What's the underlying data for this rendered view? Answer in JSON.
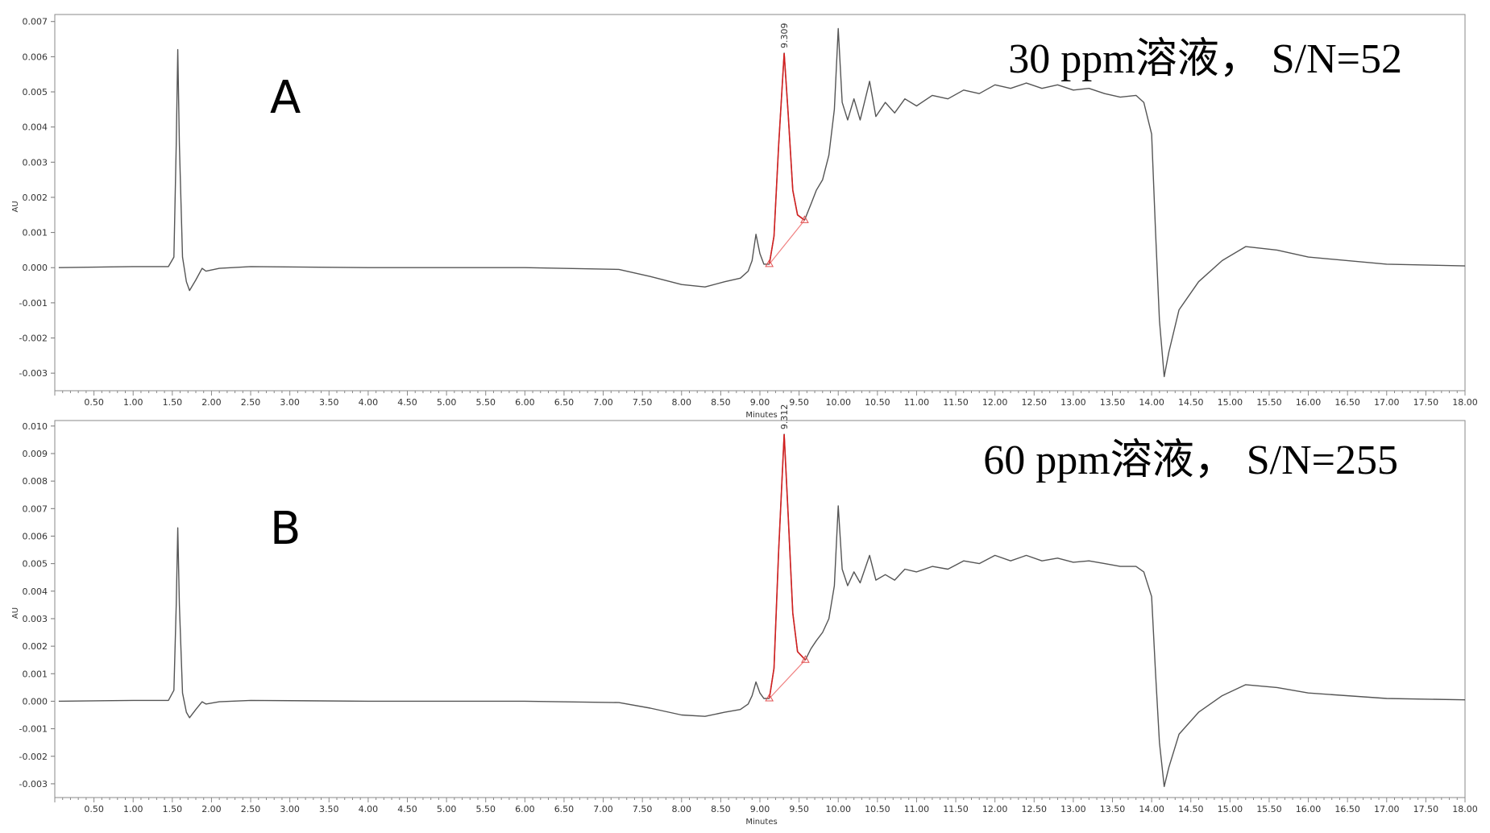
{
  "chart_data": [
    {
      "type": "line",
      "panel_letter": "A",
      "annotation": "30 ppm溶液，  S/N=52",
      "xlabel": "Minutes",
      "ylabel": "AU",
      "xlim": [
        0,
        18
      ],
      "ylim": [
        -0.0035,
        0.0072
      ],
      "x_tick_labels": [
        "0.50",
        "1.00",
        "1.50",
        "2.00",
        "2.50",
        "3.00",
        "3.50",
        "4.00",
        "4.50",
        "5.00",
        "5.50",
        "6.00",
        "6.50",
        "7.00",
        "7.50",
        "8.00",
        "8.50",
        "9.00",
        "9.50",
        "10.00",
        "10.50",
        "11.00",
        "11.50",
        "12.00",
        "12.50",
        "13.00",
        "13.50",
        "14.00",
        "14.50",
        "15.00",
        "15.50",
        "16.00",
        "16.50",
        "17.00",
        "17.50",
        "18.00"
      ],
      "y_tick_labels": [
        "0.007",
        "0.006",
        "0.005",
        "0.004",
        "0.003",
        "0.002",
        "0.001",
        "0.000",
        "-0.001",
        "-0.002",
        "-0.003"
      ],
      "peak_label": "9.309",
      "integrated_peak": {
        "start": [
          9.12,
          0.0001
        ],
        "apex": [
          9.31,
          0.0061
        ],
        "end": [
          9.57,
          0.00135
        ]
      },
      "trace": {
        "color": "#555555",
        "peak_color": "#d22020",
        "points": [
          [
            0.05,
            0.0
          ],
          [
            1.0,
            3e-05
          ],
          [
            1.45,
            3e-05
          ],
          [
            1.52,
            0.0003
          ],
          [
            1.55,
            0.0035
          ],
          [
            1.57,
            0.0062
          ],
          [
            1.59,
            0.0035
          ],
          [
            1.63,
            0.0003
          ],
          [
            1.68,
            -0.0004
          ],
          [
            1.72,
            -0.00065
          ],
          [
            1.8,
            -0.00035
          ],
          [
            1.88,
            -2e-05
          ],
          [
            1.93,
            -0.0001
          ],
          [
            2.1,
            -2e-05
          ],
          [
            2.5,
            3e-05
          ],
          [
            4.0,
            0.0
          ],
          [
            6.0,
            0.0
          ],
          [
            7.2,
            -5e-05
          ],
          [
            7.6,
            -0.00025
          ],
          [
            8.0,
            -0.00048
          ],
          [
            8.3,
            -0.00055
          ],
          [
            8.55,
            -0.0004
          ],
          [
            8.75,
            -0.0003
          ],
          [
            8.85,
            -0.0001
          ],
          [
            8.9,
            0.0002
          ],
          [
            8.95,
            0.00095
          ],
          [
            9.0,
            0.0004
          ],
          [
            9.05,
            0.0001
          ],
          [
            9.12,
            0.0001
          ],
          [
            9.18,
            0.0009
          ],
          [
            9.24,
            0.0035
          ],
          [
            9.31,
            0.0061
          ],
          [
            9.36,
            0.0044
          ],
          [
            9.42,
            0.0022
          ],
          [
            9.48,
            0.0015
          ],
          [
            9.57,
            0.00135
          ],
          [
            9.65,
            0.0018
          ],
          [
            9.72,
            0.0022
          ],
          [
            9.8,
            0.0025
          ],
          [
            9.88,
            0.0032
          ],
          [
            9.95,
            0.0045
          ],
          [
            10.0,
            0.0068
          ],
          [
            10.05,
            0.0047
          ],
          [
            10.12,
            0.0042
          ],
          [
            10.2,
            0.0048
          ],
          [
            10.28,
            0.0042
          ],
          [
            10.4,
            0.0053
          ],
          [
            10.48,
            0.0043
          ],
          [
            10.6,
            0.0047
          ],
          [
            10.72,
            0.0044
          ],
          [
            10.85,
            0.0048
          ],
          [
            11.0,
            0.0046
          ],
          [
            11.2,
            0.0049
          ],
          [
            11.4,
            0.0048
          ],
          [
            11.6,
            0.00505
          ],
          [
            11.8,
            0.00495
          ],
          [
            12.0,
            0.0052
          ],
          [
            12.2,
            0.0051
          ],
          [
            12.4,
            0.00525
          ],
          [
            12.6,
            0.0051
          ],
          [
            12.8,
            0.0052
          ],
          [
            13.0,
            0.00505
          ],
          [
            13.2,
            0.0051
          ],
          [
            13.4,
            0.00495
          ],
          [
            13.6,
            0.00485
          ],
          [
            13.8,
            0.0049
          ],
          [
            13.9,
            0.0047
          ],
          [
            14.0,
            0.0038
          ],
          [
            14.05,
            0.001
          ],
          [
            14.1,
            -0.0015
          ],
          [
            14.16,
            -0.0031
          ],
          [
            14.22,
            -0.0024
          ],
          [
            14.35,
            -0.0012
          ],
          [
            14.6,
            -0.0004
          ],
          [
            14.9,
            0.0002
          ],
          [
            15.2,
            0.0006
          ],
          [
            15.6,
            0.0005
          ],
          [
            16.0,
            0.0003
          ],
          [
            17.0,
            0.0001
          ],
          [
            18.0,
            5e-05
          ]
        ]
      }
    },
    {
      "type": "line",
      "panel_letter": "B",
      "annotation": "60 ppm溶液，  S/N=255",
      "xlabel": "Minutes",
      "ylabel": "AU",
      "xlim": [
        0,
        18
      ],
      "ylim": [
        -0.0035,
        0.0102
      ],
      "x_tick_labels": [
        "0.50",
        "1.00",
        "1.50",
        "2.00",
        "2.50",
        "3.00",
        "3.50",
        "4.00",
        "4.50",
        "5.00",
        "5.50",
        "6.00",
        "6.50",
        "7.00",
        "7.50",
        "8.00",
        "8.50",
        "9.00",
        "9.50",
        "10.00",
        "10.50",
        "11.00",
        "11.50",
        "12.00",
        "12.50",
        "13.00",
        "13.50",
        "14.00",
        "14.50",
        "15.00",
        "15.50",
        "16.00",
        "16.50",
        "17.00",
        "17.50",
        "18.00"
      ],
      "y_tick_labels": [
        "0.010",
        "0.009",
        "0.008",
        "0.007",
        "0.006",
        "0.005",
        "0.004",
        "0.003",
        "0.002",
        "0.001",
        "0.000",
        "-0.001",
        "-0.002",
        "-0.003"
      ],
      "peak_label": "9.312",
      "integrated_peak": {
        "start": [
          9.12,
          0.0001
        ],
        "apex": [
          9.31,
          0.0097
        ],
        "end": [
          9.58,
          0.0015
        ]
      },
      "trace": {
        "color": "#555555",
        "peak_color": "#d22020",
        "points": [
          [
            0.05,
            0.0
          ],
          [
            1.0,
            3e-05
          ],
          [
            1.45,
            3e-05
          ],
          [
            1.52,
            0.0004
          ],
          [
            1.55,
            0.0035
          ],
          [
            1.57,
            0.0063
          ],
          [
            1.59,
            0.0035
          ],
          [
            1.63,
            0.0003
          ],
          [
            1.68,
            -0.0004
          ],
          [
            1.72,
            -0.0006
          ],
          [
            1.8,
            -0.0003
          ],
          [
            1.88,
            -2e-05
          ],
          [
            1.93,
            -0.0001
          ],
          [
            2.1,
            -2e-05
          ],
          [
            2.5,
            3e-05
          ],
          [
            4.0,
            0.0
          ],
          [
            6.0,
            0.0
          ],
          [
            7.2,
            -5e-05
          ],
          [
            7.6,
            -0.00025
          ],
          [
            8.0,
            -0.0005
          ],
          [
            8.3,
            -0.00055
          ],
          [
            8.55,
            -0.0004
          ],
          [
            8.75,
            -0.0003
          ],
          [
            8.85,
            -0.0001
          ],
          [
            8.9,
            0.0002
          ],
          [
            8.95,
            0.0007
          ],
          [
            9.0,
            0.0003
          ],
          [
            9.05,
            0.0001
          ],
          [
            9.12,
            0.0001
          ],
          [
            9.18,
            0.0012
          ],
          [
            9.24,
            0.0055
          ],
          [
            9.31,
            0.0097
          ],
          [
            9.36,
            0.0068
          ],
          [
            9.42,
            0.0032
          ],
          [
            9.48,
            0.0018
          ],
          [
            9.58,
            0.0015
          ],
          [
            9.65,
            0.0019
          ],
          [
            9.72,
            0.0022
          ],
          [
            9.8,
            0.0025
          ],
          [
            9.88,
            0.003
          ],
          [
            9.95,
            0.0042
          ],
          [
            10.0,
            0.0071
          ],
          [
            10.05,
            0.0048
          ],
          [
            10.12,
            0.0042
          ],
          [
            10.2,
            0.0047
          ],
          [
            10.28,
            0.0043
          ],
          [
            10.4,
            0.0053
          ],
          [
            10.48,
            0.0044
          ],
          [
            10.6,
            0.0046
          ],
          [
            10.72,
            0.0044
          ],
          [
            10.85,
            0.0048
          ],
          [
            11.0,
            0.0047
          ],
          [
            11.2,
            0.0049
          ],
          [
            11.4,
            0.0048
          ],
          [
            11.6,
            0.0051
          ],
          [
            11.8,
            0.005
          ],
          [
            12.0,
            0.0053
          ],
          [
            12.2,
            0.0051
          ],
          [
            12.4,
            0.0053
          ],
          [
            12.6,
            0.0051
          ],
          [
            12.8,
            0.0052
          ],
          [
            13.0,
            0.00505
          ],
          [
            13.2,
            0.0051
          ],
          [
            13.4,
            0.005
          ],
          [
            13.6,
            0.0049
          ],
          [
            13.8,
            0.0049
          ],
          [
            13.9,
            0.0047
          ],
          [
            14.0,
            0.0038
          ],
          [
            14.05,
            0.001
          ],
          [
            14.1,
            -0.0015
          ],
          [
            14.16,
            -0.0031
          ],
          [
            14.22,
            -0.0024
          ],
          [
            14.35,
            -0.0012
          ],
          [
            14.6,
            -0.0004
          ],
          [
            14.9,
            0.0002
          ],
          [
            15.2,
            0.0006
          ],
          [
            15.6,
            0.0005
          ],
          [
            16.0,
            0.0003
          ],
          [
            17.0,
            0.0001
          ],
          [
            18.0,
            5e-05
          ]
        ]
      }
    }
  ]
}
